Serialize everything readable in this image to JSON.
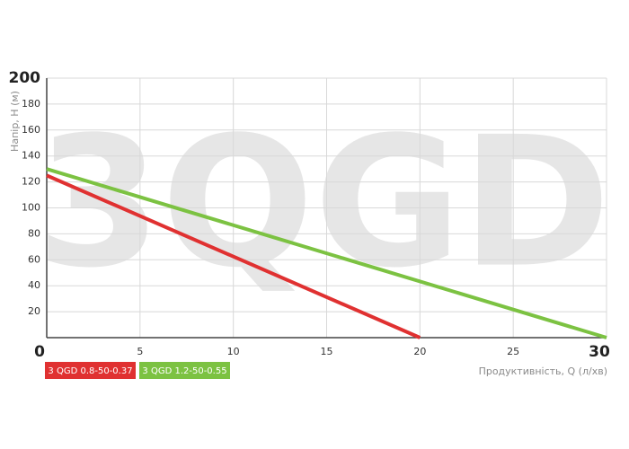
{
  "chart_data": {
    "type": "line",
    "watermark": "3QGD",
    "x_label": "Продуктивність, Q (л/хв)",
    "y_label": "Напір, H (м)",
    "series": [
      {
        "name": "3 QGD 0.8-50-0.37",
        "color": "#e03131",
        "x": [
          0,
          20
        ],
        "values": [
          125,
          0
        ]
      },
      {
        "name": "3 QGD 1.2-50-0.55",
        "color": "#7cc242",
        "x": [
          0,
          30
        ],
        "values": [
          130,
          0
        ]
      }
    ],
    "xlim": [
      0,
      30
    ],
    "xticks": [
      0,
      5,
      10,
      15,
      20,
      25,
      30
    ],
    "ylim": [
      0,
      200
    ],
    "yticks": [
      20,
      40,
      60,
      80,
      100,
      120,
      140,
      160,
      180,
      200
    ],
    "grid": true
  }
}
